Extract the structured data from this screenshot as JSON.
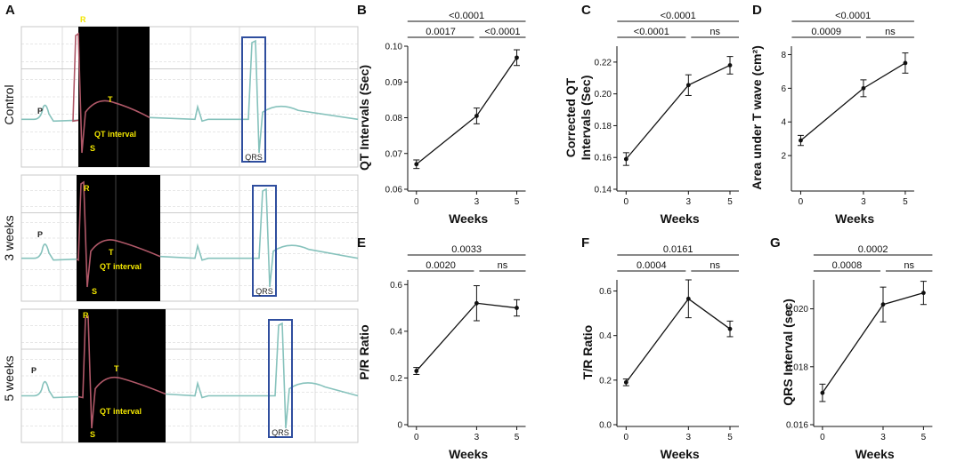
{
  "ecg": {
    "panel": "A",
    "strips": [
      {
        "row_label": "Control",
        "peaks": {
          "p": "P",
          "r": "R",
          "t": "T",
          "s": "S"
        },
        "qt_label": "QT interval",
        "qrs_label": "QRS"
      },
      {
        "row_label": "3 weeks",
        "peaks": {
          "p": "P",
          "r": "R",
          "t": "T",
          "s": "S"
        },
        "qt_label": "QT interval",
        "qrs_label": "QRS"
      },
      {
        "row_label": "5 weeks",
        "peaks": {
          "p": "P",
          "r": "R",
          "t": "T",
          "s": "S"
        },
        "qt_label": "QT interval",
        "qrs_label": "QRS"
      }
    ]
  },
  "chart_data": [
    {
      "panel": "B",
      "type": "line",
      "ylabel_lines": [
        "QT Intervals (Sec)"
      ],
      "xlabel": "Weeks",
      "x": [
        0,
        3,
        5
      ],
      "values": [
        0.067,
        0.0805,
        0.0968
      ],
      "errors": [
        0.0012,
        0.0022,
        0.0022
      ],
      "ylim": [
        0.06,
        0.1
      ],
      "yticks": [
        0.06,
        0.07,
        0.08,
        0.09,
        0.1
      ],
      "ytick_labels": [
        "0.06",
        "0.07",
        "0.08",
        "0.09",
        "0.10"
      ],
      "xticks": [
        0,
        3,
        5
      ],
      "xtick_labels": [
        "0",
        "3",
        "5"
      ],
      "comparisons": [
        {
          "label": "<0.0001",
          "from": 0,
          "to": 5,
          "level": 2
        },
        {
          "label": "0.0017",
          "from": 0,
          "to": 3,
          "level": 1
        },
        {
          "label": "<0.0001",
          "from": 3,
          "to": 5,
          "level": 1
        }
      ]
    },
    {
      "panel": "C",
      "type": "line",
      "ylabel_lines": [
        "Corrected QT",
        "Intervals (Sec)"
      ],
      "xlabel": "Weeks",
      "x": [
        0,
        3,
        5
      ],
      "values": [
        0.159,
        0.2055,
        0.218
      ],
      "errors": [
        0.004,
        0.0065,
        0.0055
      ],
      "ylim": [
        0.14,
        0.23
      ],
      "yticks": [
        0.14,
        0.16,
        0.18,
        0.2,
        0.22
      ],
      "ytick_labels": [
        "0.14",
        "0.16",
        "0.18",
        "0.20",
        "0.22"
      ],
      "xticks": [
        0,
        3,
        5
      ],
      "xtick_labels": [
        "0",
        "3",
        "5"
      ],
      "comparisons": [
        {
          "label": "<0.0001",
          "from": 0,
          "to": 5,
          "level": 2
        },
        {
          "label": "<0.0001",
          "from": 0,
          "to": 3,
          "level": 1
        },
        {
          "label": "ns",
          "from": 3,
          "to": 5,
          "level": 1
        }
      ]
    },
    {
      "panel": "D",
      "type": "line",
      "ylabel_lines": [
        "Area under T wave (cm²)"
      ],
      "xlabel": "Weeks",
      "x": [
        0,
        3,
        5
      ],
      "values": [
        2.9,
        6.0,
        7.5
      ],
      "errors": [
        0.3,
        0.5,
        0.6
      ],
      "ylim": [
        0,
        8.5
      ],
      "yticks": [
        2,
        4,
        6,
        8
      ],
      "ytick_labels": [
        "2",
        "4",
        "6",
        "8"
      ],
      "xticks": [
        0,
        3,
        5
      ],
      "xtick_labels": [
        "0",
        "3",
        "5"
      ],
      "comparisons": [
        {
          "label": "<0.0001",
          "from": 0,
          "to": 5,
          "level": 2
        },
        {
          "label": "0.0009",
          "from": 0,
          "to": 3,
          "level": 1
        },
        {
          "label": "ns",
          "from": 3,
          "to": 5,
          "level": 1
        }
      ]
    },
    {
      "panel": "E",
      "type": "line",
      "ylabel_lines": [
        "P/R Ratio"
      ],
      "xlabel": "Weeks",
      "x": [
        0,
        3,
        5
      ],
      "values": [
        0.23,
        0.52,
        0.5
      ],
      "errors": [
        0.015,
        0.075,
        0.035
      ],
      "ylim": [
        0,
        0.62
      ],
      "yticks": [
        0,
        0.2,
        0.4,
        0.6
      ],
      "ytick_labels": [
        "0",
        "0.2",
        "0.4",
        "0.6"
      ],
      "xticks": [
        0,
        3,
        5
      ],
      "xtick_labels": [
        "0",
        "3",
        "5"
      ],
      "comparisons": [
        {
          "label": "0.0033",
          "from": 0,
          "to": 5,
          "level": 2
        },
        {
          "label": "0.0020",
          "from": 0,
          "to": 3,
          "level": 1
        },
        {
          "label": "ns",
          "from": 3,
          "to": 5,
          "level": 1
        }
      ]
    },
    {
      "panel": "F",
      "type": "line",
      "ylabel_lines": [
        "T/R Ratio"
      ],
      "xlabel": "Weeks",
      "x": [
        0,
        3,
        5
      ],
      "values": [
        0.19,
        0.565,
        0.43
      ],
      "errors": [
        0.015,
        0.085,
        0.035
      ],
      "ylim": [
        0,
        0.65
      ],
      "yticks": [
        0.0,
        0.2,
        0.4,
        0.6
      ],
      "ytick_labels": [
        "0.0",
        "0.2",
        "0.4",
        "0.6"
      ],
      "xticks": [
        0,
        3,
        5
      ],
      "xtick_labels": [
        "0",
        "3",
        "5"
      ],
      "comparisons": [
        {
          "label": "0.0161",
          "from": 0,
          "to": 5,
          "level": 2
        },
        {
          "label": "0.0004",
          "from": 0,
          "to": 3,
          "level": 1
        },
        {
          "label": "ns",
          "from": 3,
          "to": 5,
          "level": 1
        }
      ]
    },
    {
      "panel": "G",
      "type": "line",
      "ylabel_lines": [
        "QRS Interval (sec)"
      ],
      "xlabel": "Weeks",
      "x": [
        0,
        3,
        5
      ],
      "values": [
        0.0171,
        0.02015,
        0.02055
      ],
      "errors": [
        0.0003,
        0.0006,
        0.0004
      ],
      "ylim": [
        0.016,
        0.021
      ],
      "yticks": [
        0.016,
        0.018,
        0.02
      ],
      "ytick_labels": [
        "0.016",
        "0.018",
        "0.020"
      ],
      "xticks": [
        0,
        3,
        5
      ],
      "xtick_labels": [
        "0",
        "3",
        "5"
      ],
      "comparisons": [
        {
          "label": "0.0002",
          "from": 0,
          "to": 5,
          "level": 2
        },
        {
          "label": "0.0008",
          "from": 0,
          "to": 3,
          "level": 1
        },
        {
          "label": "ns",
          "from": 3,
          "to": 5,
          "level": 1
        }
      ]
    }
  ],
  "colors": {
    "trace": "#86c2bc",
    "qt_trace": "#b05868",
    "qt_background": "#000000",
    "qt_text": "#f2e600",
    "qrs_box": "#2f4e9e",
    "axis": "#111111",
    "grid": "#cfcfcf"
  }
}
